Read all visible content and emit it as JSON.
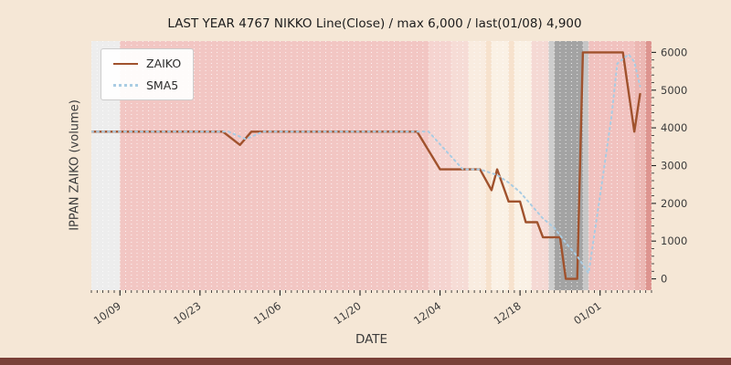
{
  "title": "LAST YEAR 4767 NIKKO Line(Close) / max 6,000 / last(01/08) 4,900",
  "axes": {
    "x_label": "DATE",
    "y_label": "IPPAN ZAIKO (volume)"
  },
  "legend": {
    "items": [
      {
        "label": "ZAIKO",
        "color": "#a0522d",
        "style": "solid"
      },
      {
        "label": "SMA5",
        "color": "#a9cce3",
        "style": "dotted"
      }
    ]
  },
  "colors": {
    "figure_bg": "#f5e7d6",
    "bottom_strip": "#7a4038",
    "grid": "#ffffff",
    "tick_text": "#3b3b3b",
    "tick_mark": "#222222"
  },
  "chart_data": {
    "type": "line",
    "title": "LAST YEAR 4767 NIKKO Line(Close) / max 6,000 / last(01/08) 4,900",
    "xlabel": "DATE",
    "ylabel": "IPPAN ZAIKO (volume)",
    "x_ticks": [
      "10/09",
      "10/23",
      "11/06",
      "11/20",
      "12/04",
      "12/18",
      "01/01"
    ],
    "y_ticks": [
      0,
      1000,
      2000,
      3000,
      4000,
      5000,
      6000
    ],
    "x_range": [
      "10/04",
      "01/10"
    ],
    "y_range": [
      -300,
      6300
    ],
    "legend_position": "upper-left",
    "grid": "vertical-daily-white-dashed",
    "max_value": 6000,
    "last_value": 4900,
    "last_date": "01/08",
    "series": [
      {
        "name": "ZAIKO",
        "color": "#a0522d",
        "style": "solid",
        "points": [
          [
            "10/04",
            3900
          ],
          [
            "10/27",
            3900
          ],
          [
            "10/30",
            3550
          ],
          [
            "11/01",
            3900
          ],
          [
            "11/30",
            3900
          ],
          [
            "12/04",
            2900
          ],
          [
            "12/11",
            2900
          ],
          [
            "12/13",
            2350
          ],
          [
            "12/14",
            2900
          ],
          [
            "12/16",
            2050
          ],
          [
            "12/18",
            2050
          ],
          [
            "12/19",
            1500
          ],
          [
            "12/21",
            1500
          ],
          [
            "12/22",
            1100
          ],
          [
            "12/25",
            1100
          ],
          [
            "12/26",
            0
          ],
          [
            "12/28",
            0
          ],
          [
            "12/29",
            6000
          ],
          [
            "01/05",
            6000
          ],
          [
            "01/07",
            3900
          ],
          [
            "01/08",
            4900
          ]
        ]
      },
      {
        "name": "SMA5",
        "color": "#a9cce3",
        "style": "dotted",
        "points": [
          [
            "10/04",
            3900
          ],
          [
            "10/28",
            3900
          ],
          [
            "10/31",
            3700
          ],
          [
            "11/03",
            3900
          ],
          [
            "12/02",
            3900
          ],
          [
            "12/05",
            3400
          ],
          [
            "12/08",
            2900
          ],
          [
            "12/11",
            2900
          ],
          [
            "12/14",
            2750
          ],
          [
            "12/16",
            2550
          ],
          [
            "12/18",
            2300
          ],
          [
            "12/20",
            1950
          ],
          [
            "12/22",
            1600
          ],
          [
            "12/24",
            1350
          ],
          [
            "12/26",
            950
          ],
          [
            "12/28",
            600
          ],
          [
            "12/30",
            150
          ],
          [
            "01/01",
            2200
          ],
          [
            "01/03",
            4300
          ],
          [
            "01/04",
            5700
          ],
          [
            "01/06",
            5950
          ],
          [
            "01/07",
            5750
          ],
          [
            "01/08",
            5100
          ]
        ]
      }
    ],
    "background_bands": [
      {
        "from": "10/04",
        "to": "10/09",
        "color": "#ededed"
      },
      {
        "from": "10/09",
        "to": "12/02",
        "color": "#f2c6c3"
      },
      {
        "from": "12/02",
        "to": "12/06",
        "color": "#f5d4d0"
      },
      {
        "from": "12/06",
        "to": "12/09",
        "color": "#f6dcd6"
      },
      {
        "from": "12/09",
        "to": "12/12",
        "color": "#f9ece0"
      },
      {
        "from": "12/12",
        "to": "12/13",
        "color": "#f7e2cd"
      },
      {
        "from": "12/13",
        "to": "12/16",
        "color": "#faf1e5"
      },
      {
        "from": "12/16",
        "to": "12/17",
        "color": "#f7e2cd"
      },
      {
        "from": "12/17",
        "to": "12/20",
        "color": "#faf1e5"
      },
      {
        "from": "12/20",
        "to": "12/23",
        "color": "#f5d9d4"
      },
      {
        "from": "12/23",
        "to": "12/24",
        "color": "#cdcdcd"
      },
      {
        "from": "12/24",
        "to": "12/29",
        "color": "#a3a3a3"
      },
      {
        "from": "12/29",
        "to": "12/30",
        "color": "#c6c6c6"
      },
      {
        "from": "12/30",
        "to": "01/07",
        "color": "#f1c2bf"
      },
      {
        "from": "01/07",
        "to": "01/09",
        "color": "#ecb7b3"
      },
      {
        "from": "01/09",
        "to": "01/10",
        "color": "#dd948f"
      }
    ]
  }
}
